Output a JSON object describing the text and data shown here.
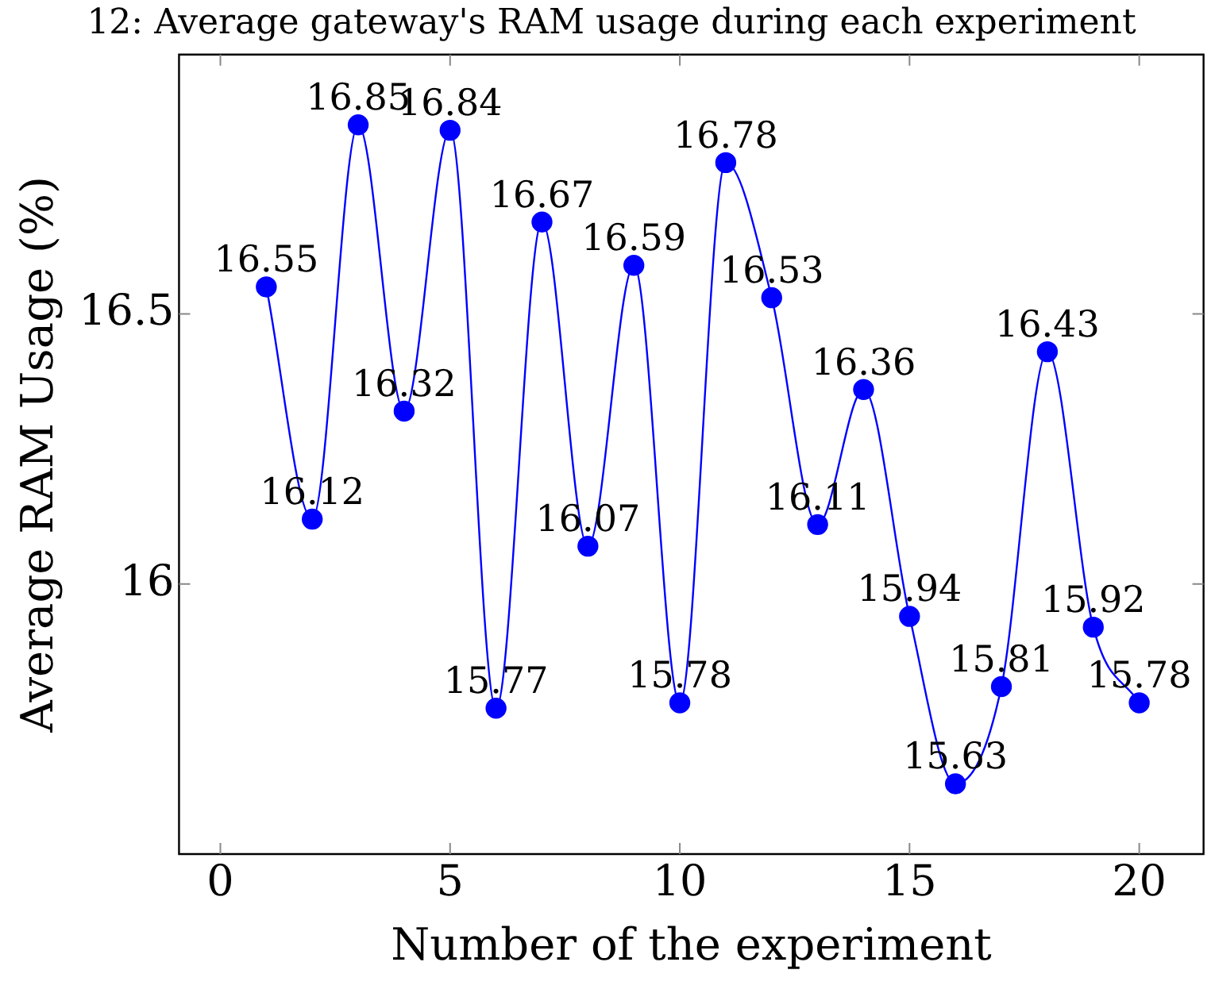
{
  "chart_data": {
    "type": "line",
    "title": "12: Average gateway's RAM usage during each experiment",
    "xlabel": "Number of the experiment",
    "ylabel": "Average RAM Usage (%)",
    "x": [
      1,
      2,
      3,
      4,
      5,
      6,
      7,
      8,
      9,
      10,
      11,
      12,
      13,
      14,
      15,
      16,
      17,
      18,
      19,
      20
    ],
    "series": [
      {
        "color": "#0000ff",
        "values": [
          16.55,
          16.12,
          16.85,
          16.32,
          16.84,
          15.77,
          16.67,
          16.07,
          16.59,
          15.78,
          16.78,
          16.53,
          16.11,
          16.36,
          15.94,
          15.63,
          15.81,
          16.43,
          15.92,
          15.78
        ]
      }
    ],
    "xlim": [
      -0.9,
      21.4
    ],
    "xticks": [
      0,
      5,
      10,
      15,
      20
    ],
    "ylim": [
      15.5,
      16.98
    ],
    "yticks": [
      16,
      16.5
    ],
    "grid": false,
    "legend": false,
    "marker": "circle",
    "line_style": "solid",
    "data_labels": true
  }
}
